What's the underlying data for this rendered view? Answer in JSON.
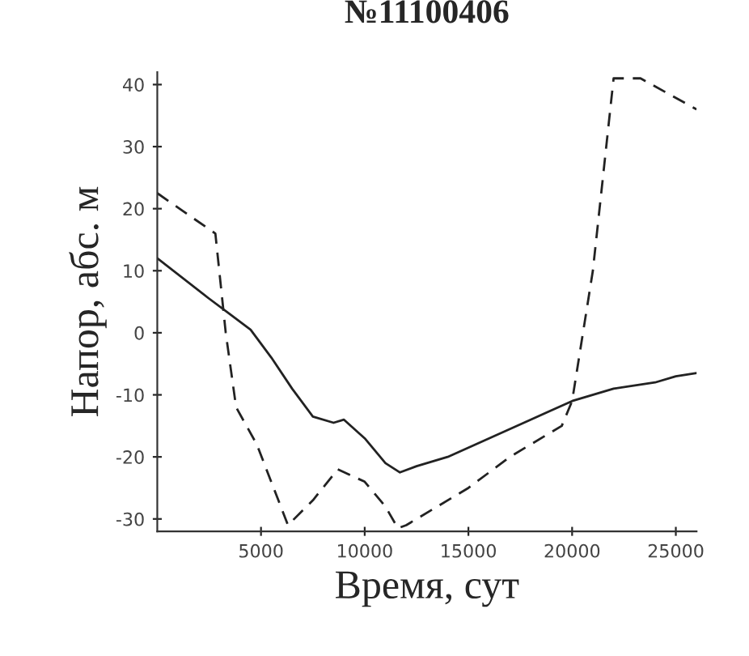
{
  "chart_data": {
    "type": "line",
    "title": "№11100406",
    "xlabel": "Время, сут",
    "ylabel": "Напор, абс. м",
    "xlim": [
      0,
      26000
    ],
    "ylim": [
      -32,
      42
    ],
    "xticks": [
      5000,
      10000,
      15000,
      20000,
      25000
    ],
    "yticks": [
      -30,
      -20,
      -10,
      0,
      10,
      20,
      30,
      40
    ],
    "grid": false,
    "legend": false,
    "marker": "none",
    "series": [
      {
        "color": "#222222",
        "line_style": "solid",
        "x": [
          0,
          2500,
          3500,
          4500,
          5500,
          6500,
          7500,
          8500,
          9000,
          10000,
          11000,
          11700,
          12500,
          14000,
          16000,
          18000,
          20000,
          22000,
          24000,
          25000,
          26000
        ],
        "values": [
          12,
          5.5,
          3,
          0.5,
          -4,
          -9,
          -13.5,
          -14.5,
          -14,
          -17,
          -21,
          -22.5,
          -21.5,
          -20,
          -17,
          -14,
          -11,
          -9,
          -8,
          -7,
          -6.5
        ]
      },
      {
        "color": "#222222",
        "line_style": "dashed",
        "x": [
          0,
          1500,
          2800,
          3300,
          3800,
          4800,
          6300,
          7500,
          8700,
          10000,
          11000,
          11600,
          12000,
          13500,
          15000,
          17000,
          19500,
          20000,
          21000,
          22000,
          23300,
          26000
        ],
        "values": [
          22.5,
          19,
          16,
          0,
          -12,
          -18,
          -31,
          -27,
          -22,
          -24,
          -28,
          -31.5,
          -31,
          -28,
          -25,
          -20,
          -15,
          -11,
          10,
          41,
          41,
          36
        ]
      }
    ]
  }
}
